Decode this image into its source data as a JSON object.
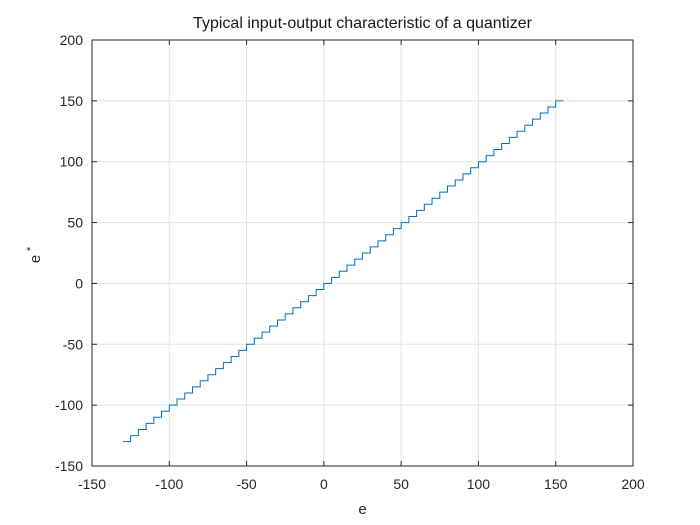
{
  "chart_data": {
    "type": "line",
    "title": "Typical input-output characteristic of a quantizer",
    "xlabel": "e",
    "ylabel": "e",
    "ylabel_superscript": "*",
    "xlim": [
      -150,
      200
    ],
    "ylim": [
      -150,
      200
    ],
    "xticks": [
      -150,
      -100,
      -50,
      0,
      50,
      100,
      150,
      200
    ],
    "yticks": [
      -150,
      -100,
      -50,
      0,
      50,
      100,
      150,
      200
    ],
    "xtick_labels": [
      "-150",
      "-100",
      "-50",
      "0",
      "50",
      "100",
      "150",
      "200"
    ],
    "ytick_labels": [
      "-150",
      "-100",
      "-50",
      "0",
      "50",
      "100",
      "150",
      "200"
    ],
    "grid": true,
    "series": [
      {
        "color": "#0072BD",
        "style": "staircase",
        "step": 5,
        "x_start": -130,
        "x_end": 155,
        "y_start": -130,
        "y_end": 154
      }
    ]
  }
}
